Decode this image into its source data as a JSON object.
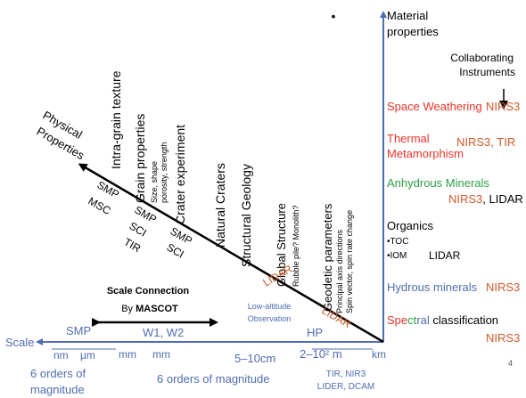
{
  "right_axis": {
    "title_line1": "Material",
    "title_line2": "properties",
    "instruments_line1": "Collaborating",
    "instruments_line2": "Instruments",
    "space_weathering": "Space Weathering",
    "space_weathering_inst": "NIRS3",
    "thermal_line1": "Thermal",
    "thermal_line2": "Metamorphism",
    "thermal_inst": "NIRS3, TIR",
    "anhydrous": "Anhydrous Minerals",
    "anhydrous_inst_a": "NIRS3",
    "anhydrous_inst_b": ", LIDAR",
    "organics": "Organics",
    "toc": "•TOC",
    "iom": "•IOM",
    "organics_inst": "LIDAR",
    "hydrous": "Hydrous minerals",
    "hydrous_inst": "NIRS3",
    "spectral_a": "Spe",
    "spectral_b": "ct",
    "spectral_c": "ral",
    "spectral_d": " classification",
    "spectral_inst": "NIRS3"
  },
  "diagonal": {
    "label_line1": "Physical",
    "label_line2": "Properties",
    "intra_grain": "Intra-grain texture",
    "grain_props": "Grain properties",
    "grain_sub1": "Size, shape",
    "grain_sub2": "porosity, strength",
    "crater_exp": "Crater experiment",
    "natural_craters": "Natural Craters",
    "structural_geology": "Structural Geology",
    "global_structure": "Global Structure",
    "global_sub": "Rubble pile? Monolith?",
    "geodetic": "Geodetic parameters",
    "geodetic_sub1": "Principal axis directions",
    "geodetic_sub2": "Spin vector, spin rate change",
    "under_smp1": "SMP",
    "under_msc": "MSC",
    "under_smp2": "SMP",
    "under_sci1": "SCI",
    "under_tir": "TIR",
    "under_smp3": "SMP",
    "under_sci2": "SCI",
    "lidar1": "LIDAR",
    "lidar2": "LIDAR"
  },
  "scale_connection": {
    "line1": "Scale Connection",
    "line2_prefix": "By ",
    "line2_bold": "MASCOT"
  },
  "low_altitude": {
    "line1": "Low-altitude",
    "line2": "Observation"
  },
  "scale_axis": {
    "title": "Scale",
    "smp": "SMP",
    "nm": "nm",
    "um": "μm",
    "mm1": "mm",
    "w1w2": "W1, W2",
    "mm2": "mm",
    "range_5_10": "5–10cm",
    "hp": "HP",
    "range_m": "2–10² m",
    "km": "km",
    "orders1_line1": "6 orders of",
    "orders1_line2": "magnitude",
    "orders2": "6 orders of magnitude",
    "inst_line1": "TIR, NIR3",
    "inst_line2": "LIDER, DCAM"
  },
  "page_number": "4",
  "dot": "•"
}
